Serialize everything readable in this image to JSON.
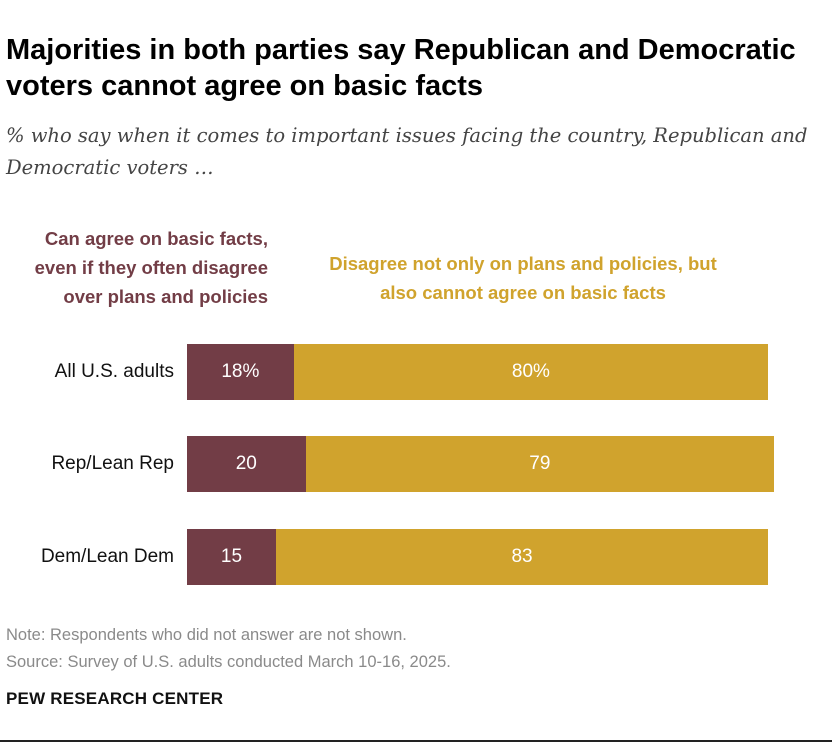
{
  "title": "Majorities in both parties say Republican and Democratic voters cannot agree on basic facts",
  "subtitle": "% who say when it comes to important issues facing the country, Republican and Democratic voters …",
  "legend": {
    "agree": "Can agree on basic facts, even if they often disagree over plans and policies",
    "disagree": "Disagree not only on plans and policies, but also cannot agree on basic facts"
  },
  "colors": {
    "agree": "#723d46",
    "disagree": "#d0a32d"
  },
  "chart_data": {
    "type": "bar",
    "orientation": "horizontal",
    "stacked": true,
    "categories": [
      "All U.S. adults",
      "Rep/Lean Rep",
      "Dem/Lean Dem"
    ],
    "series": [
      {
        "name": "Can agree on basic facts, even if they often disagree over plans and policies",
        "values": [
          18,
          20,
          15
        ],
        "labels": [
          "18%",
          "20",
          "15"
        ]
      },
      {
        "name": "Disagree not only on plans and policies, but also cannot agree on basic facts",
        "values": [
          80,
          79,
          83
        ],
        "labels": [
          "80%",
          "79",
          "83"
        ]
      }
    ],
    "xlim": [
      0,
      100
    ],
    "grid": false,
    "legend_placement": "top"
  },
  "note": "Note: Respondents who did not answer are not shown.",
  "source": "Source: Survey of U.S. adults conducted March 10-16, 2025.",
  "org": "PEW RESEARCH CENTER"
}
